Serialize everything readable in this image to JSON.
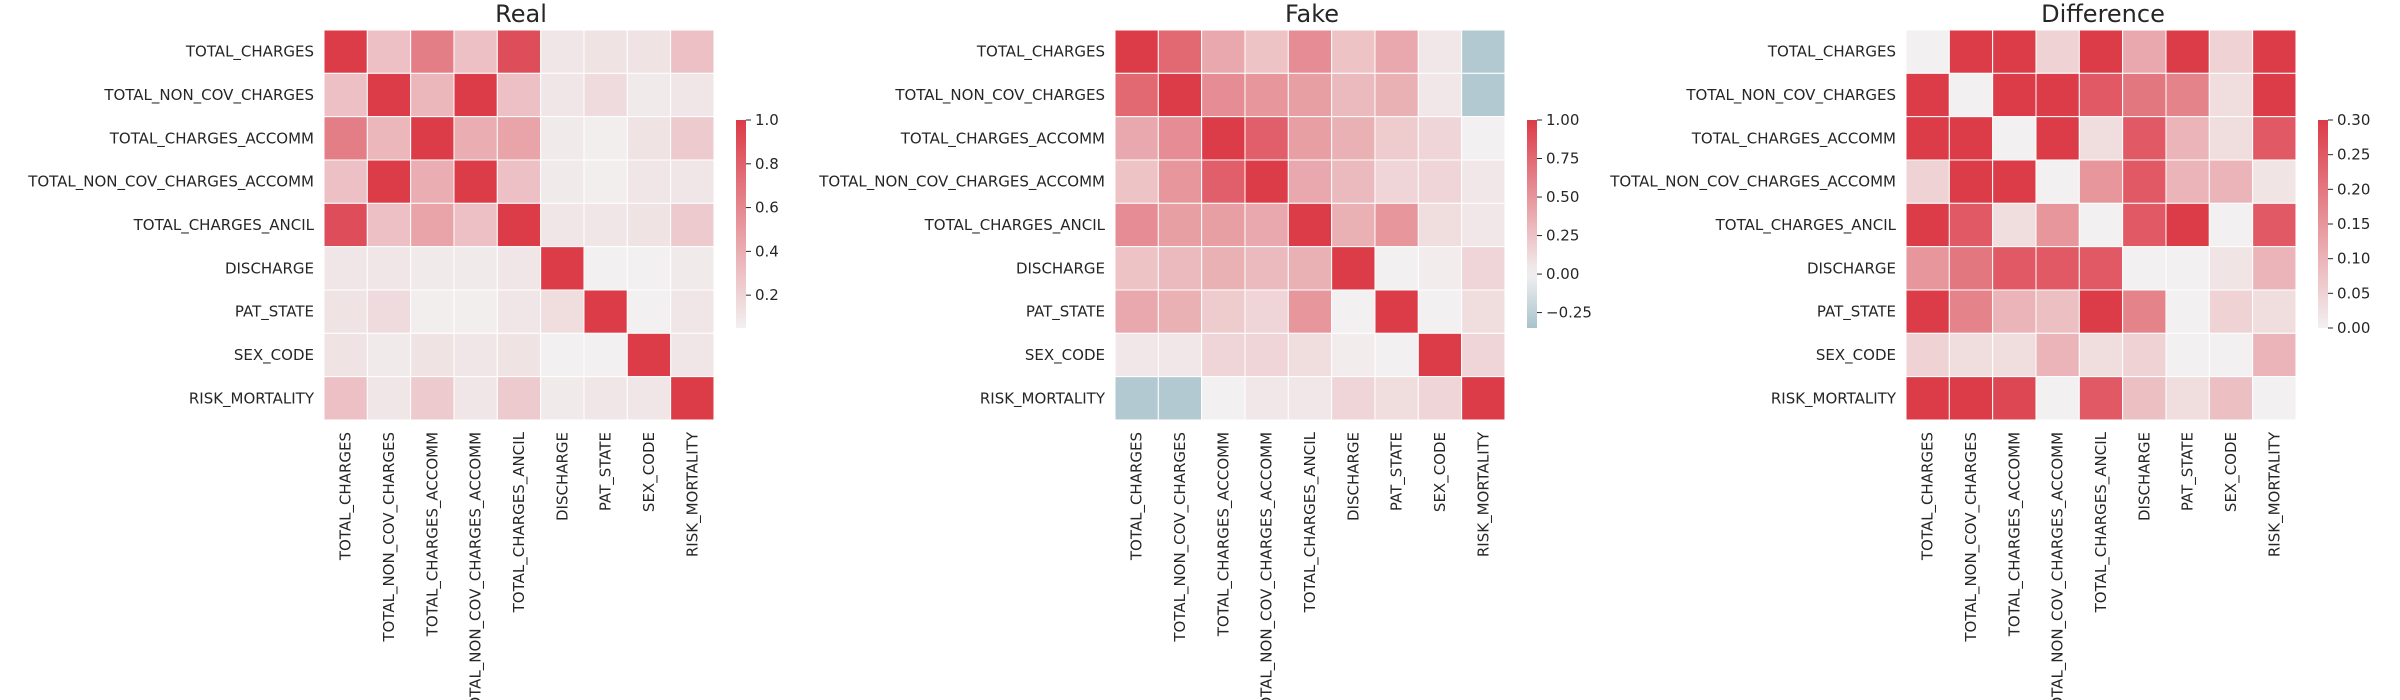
{
  "variables": [
    "TOTAL_CHARGES",
    "TOTAL_NON_COV_CHARGES",
    "TOTAL_CHARGES_ACCOMM",
    "TOTAL_NON_COV_CHARGES_ACCOMM",
    "TOTAL_CHARGES_ANCIL",
    "DISCHARGE",
    "PAT_STATE",
    "SEX_CODE",
    "RISK_MORTALITY"
  ],
  "colors": {
    "positive": "#dc3b48",
    "neutral": "#f2f0f0",
    "negative": "#a8c3cc",
    "grid_line": "#ffffff",
    "text": "#262626"
  },
  "chart_data": [
    {
      "type": "heatmap",
      "title": "Real",
      "xlabel": "",
      "ylabel": "",
      "colorbar": {
        "range": [
          0.05,
          1.0
        ],
        "ticks": [
          0.2,
          0.4,
          0.6,
          0.8,
          1.0
        ],
        "tick_labels": [
          "0.2",
          "0.4",
          "0.6",
          "0.8",
          "1.0"
        ],
        "scheme": "white-to-red"
      },
      "values": [
        [
          1.0,
          0.3,
          0.65,
          0.3,
          0.9,
          0.1,
          0.12,
          0.12,
          0.3
        ],
        [
          0.3,
          1.0,
          0.35,
          1.0,
          0.3,
          0.1,
          0.16,
          0.08,
          0.1
        ],
        [
          0.65,
          0.35,
          1.0,
          0.4,
          0.45,
          0.08,
          0.06,
          0.12,
          0.25
        ],
        [
          0.3,
          1.0,
          0.4,
          1.0,
          0.3,
          0.08,
          0.06,
          0.1,
          0.1
        ],
        [
          0.9,
          0.3,
          0.45,
          0.3,
          1.0,
          0.1,
          0.1,
          0.12,
          0.25
        ],
        [
          0.1,
          0.1,
          0.08,
          0.08,
          0.1,
          1.0,
          0.05,
          0.05,
          0.08
        ],
        [
          0.12,
          0.16,
          0.06,
          0.06,
          0.1,
          0.15,
          1.0,
          0.05,
          0.1
        ],
        [
          0.12,
          0.08,
          0.12,
          0.1,
          0.12,
          0.05,
          0.05,
          1.0,
          0.1
        ],
        [
          0.3,
          0.1,
          0.25,
          0.1,
          0.25,
          0.08,
          0.1,
          0.1,
          1.0
        ]
      ]
    },
    {
      "type": "heatmap",
      "title": "Fake",
      "xlabel": "",
      "ylabel": "",
      "colorbar": {
        "range": [
          -0.35,
          1.0
        ],
        "ticks": [
          -0.25,
          0.0,
          0.25,
          0.5,
          0.75,
          1.0
        ],
        "tick_labels": [
          "−0.25",
          "0.00",
          "0.25",
          "0.50",
          "0.75",
          "1.00"
        ],
        "scheme": "blue-white-red"
      },
      "values": [
        [
          1.0,
          0.75,
          0.4,
          0.25,
          0.55,
          0.25,
          0.4,
          0.05,
          -0.3
        ],
        [
          0.75,
          1.0,
          0.55,
          0.5,
          0.45,
          0.3,
          0.35,
          0.05,
          -0.3
        ],
        [
          0.4,
          0.55,
          1.0,
          0.8,
          0.45,
          0.35,
          0.2,
          0.15,
          0.0
        ],
        [
          0.25,
          0.5,
          0.8,
          1.0,
          0.4,
          0.3,
          0.15,
          0.15,
          0.05
        ],
        [
          0.55,
          0.45,
          0.45,
          0.4,
          1.0,
          0.35,
          0.5,
          0.1,
          0.05
        ],
        [
          0.25,
          0.3,
          0.35,
          0.3,
          0.35,
          1.0,
          0.0,
          0.02,
          0.15
        ],
        [
          0.4,
          0.35,
          0.2,
          0.15,
          0.5,
          0.0,
          1.0,
          0.0,
          0.1
        ],
        [
          0.05,
          0.05,
          0.15,
          0.15,
          0.1,
          0.02,
          0.0,
          1.0,
          0.15
        ],
        [
          -0.3,
          -0.3,
          0.0,
          0.05,
          0.05,
          0.15,
          0.1,
          0.15,
          1.0
        ]
      ]
    },
    {
      "type": "heatmap",
      "title": "Difference",
      "xlabel": "",
      "ylabel": "",
      "colorbar": {
        "range": [
          0.0,
          0.3
        ],
        "ticks": [
          0.0,
          0.05,
          0.1,
          0.15,
          0.2,
          0.25,
          0.3
        ],
        "tick_labels": [
          "0.00",
          "0.05",
          "0.10",
          "0.15",
          "0.20",
          "0.25",
          "0.30"
        ],
        "scheme": "white-to-red"
      },
      "values": [
        [
          0.0,
          0.3,
          0.3,
          0.05,
          0.3,
          0.12,
          0.3,
          0.05,
          0.3
        ],
        [
          0.3,
          0.0,
          0.3,
          0.3,
          0.25,
          0.2,
          0.18,
          0.03,
          0.3
        ],
        [
          0.3,
          0.3,
          0.0,
          0.3,
          0.03,
          0.25,
          0.1,
          0.03,
          0.25
        ],
        [
          0.05,
          0.3,
          0.3,
          0.0,
          0.15,
          0.25,
          0.1,
          0.1,
          0.02
        ],
        [
          0.3,
          0.25,
          0.03,
          0.15,
          0.0,
          0.25,
          0.3,
          0.0,
          0.25
        ],
        [
          0.15,
          0.2,
          0.25,
          0.25,
          0.25,
          0.0,
          0.0,
          0.02,
          0.1
        ],
        [
          0.3,
          0.18,
          0.1,
          0.08,
          0.3,
          0.18,
          0.0,
          0.05,
          0.03
        ],
        [
          0.05,
          0.03,
          0.03,
          0.1,
          0.03,
          0.05,
          0.0,
          0.0,
          0.1
        ],
        [
          0.3,
          0.3,
          0.28,
          0.0,
          0.25,
          0.08,
          0.03,
          0.08,
          0.0
        ]
      ]
    }
  ]
}
